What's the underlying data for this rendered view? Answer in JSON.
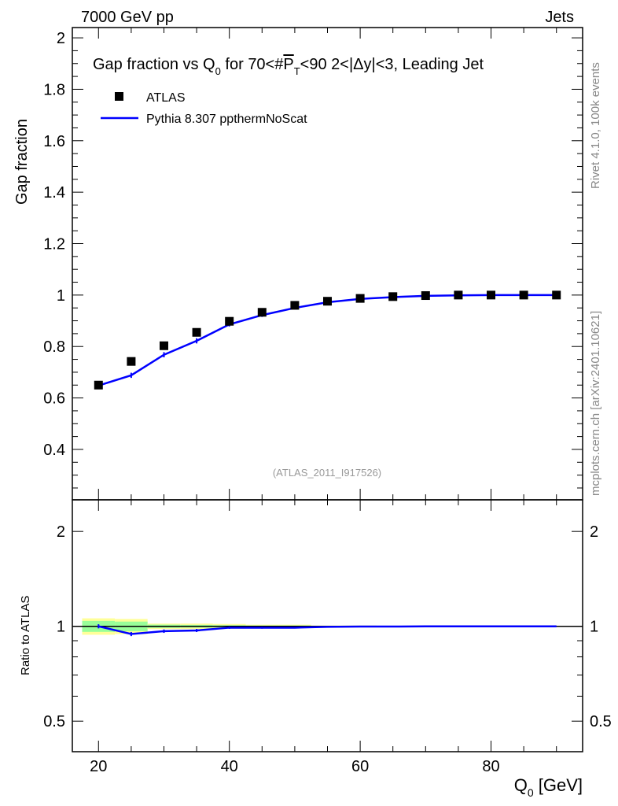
{
  "header": {
    "left": "7000 GeV pp",
    "right": "Jets"
  },
  "side_texts": {
    "rivet": "Rivet 4.1.0,  100k events",
    "mcplots": "mcplots.cern.ch [arXiv:2401.10621]"
  },
  "watermark": "(ATLAS_2011_I917526)",
  "colors": {
    "data": "#000000",
    "mc": "#0000ff",
    "band_outer": "#ffff99",
    "band_inner": "#99ff99"
  },
  "chart_data": [
    {
      "type": "scatter",
      "title": "Gap fraction vs Q0 for 70<#PT<90  2<|Δy|<3, Leading Jet",
      "title_parts": {
        "a": "Gap fraction vs Q",
        "sub0": "0",
        "b": " for 70<#",
        "p": "P",
        "subT": "T",
        "c": "<90  2<|Δy|<3, Leading Jet"
      },
      "ylabel": "Gap fraction",
      "xlim": [
        16,
        94
      ],
      "ylim": [
        0.204,
        2.04
      ],
      "yticks": [
        0.4,
        0.6,
        0.8,
        1,
        1.2,
        1.4,
        1.6,
        1.8,
        2
      ],
      "ytick_labels": [
        "0.4",
        "0.6",
        "0.8",
        "1",
        "1.2",
        "1.4",
        "1.6",
        "1.8",
        "2"
      ],
      "legend": [
        "ATLAS",
        "Pythia 8.307 ppthermNoScat"
      ],
      "legend_position": "top-left",
      "x": [
        20,
        25,
        30,
        35,
        40,
        45,
        50,
        55,
        60,
        65,
        70,
        75,
        80,
        85,
        90
      ],
      "series": [
        {
          "name": "ATLAS",
          "values": [
            0.65,
            0.742,
            0.803,
            0.855,
            0.898,
            0.933,
            0.96,
            0.976,
            0.987,
            0.994,
            0.998,
            1.0,
            1.0,
            1.0,
            1.0
          ]
        },
        {
          "name": "Pythia 8.307 ppthermNoScat",
          "values": [
            0.648,
            0.688,
            0.768,
            0.822,
            0.886,
            0.922,
            0.95,
            0.972,
            0.985,
            0.992,
            0.997,
            0.999,
            1.0,
            1.0,
            1.0
          ],
          "errors": [
            0.01,
            0.01,
            0.01,
            0.01,
            0.008,
            0.007,
            0.005,
            0.004,
            0.003,
            0.002,
            0.001,
            0.001,
            0,
            0,
            0
          ]
        }
      ]
    },
    {
      "type": "line",
      "ylabel": "Ratio to ATLAS",
      "xlabel": "Q0 [GeV]",
      "xlabel_main": "Q",
      "xlabel_sub": "0",
      "xlabel_rest": " [GeV]",
      "yscale": "log",
      "ylim": [
        0.4,
        2.52
      ],
      "yticks": [
        0.5,
        1,
        2
      ],
      "ytick_labels": [
        "0.5",
        "1",
        "2"
      ],
      "xticks": [
        20,
        40,
        60,
        80
      ],
      "xtick_labels": [
        "20",
        "40",
        "60",
        "80"
      ],
      "x": [
        20,
        25,
        30,
        35,
        40,
        45,
        50,
        55,
        60,
        65,
        70,
        75,
        80,
        85,
        90
      ],
      "ratio": [
        1.0,
        0.945,
        0.965,
        0.97,
        0.99,
        0.99,
        0.99,
        0.996,
        0.998,
        0.998,
        1.0,
        1.0,
        1.0,
        1.0,
        1.0
      ],
      "ratio_err": [
        0.015,
        0.014,
        0.012,
        0.011,
        0.008,
        0.007,
        0.005,
        0.004,
        0.003,
        0.002,
        0.001,
        0.001,
        0,
        0,
        0
      ],
      "band_outer": [
        0.06,
        0.055,
        0.02,
        0.02,
        0.017,
        0.012,
        0.012,
        0.006,
        0.006,
        0.004,
        0.003,
        0.002,
        0.002,
        0.002,
        0.002
      ],
      "band_inner": [
        0.04,
        0.035,
        0.012,
        0.01,
        0.008,
        0.006,
        0.006,
        0.004,
        0.003,
        0.002,
        0.002,
        0.001,
        0.001,
        0.001,
        0.001
      ]
    }
  ]
}
